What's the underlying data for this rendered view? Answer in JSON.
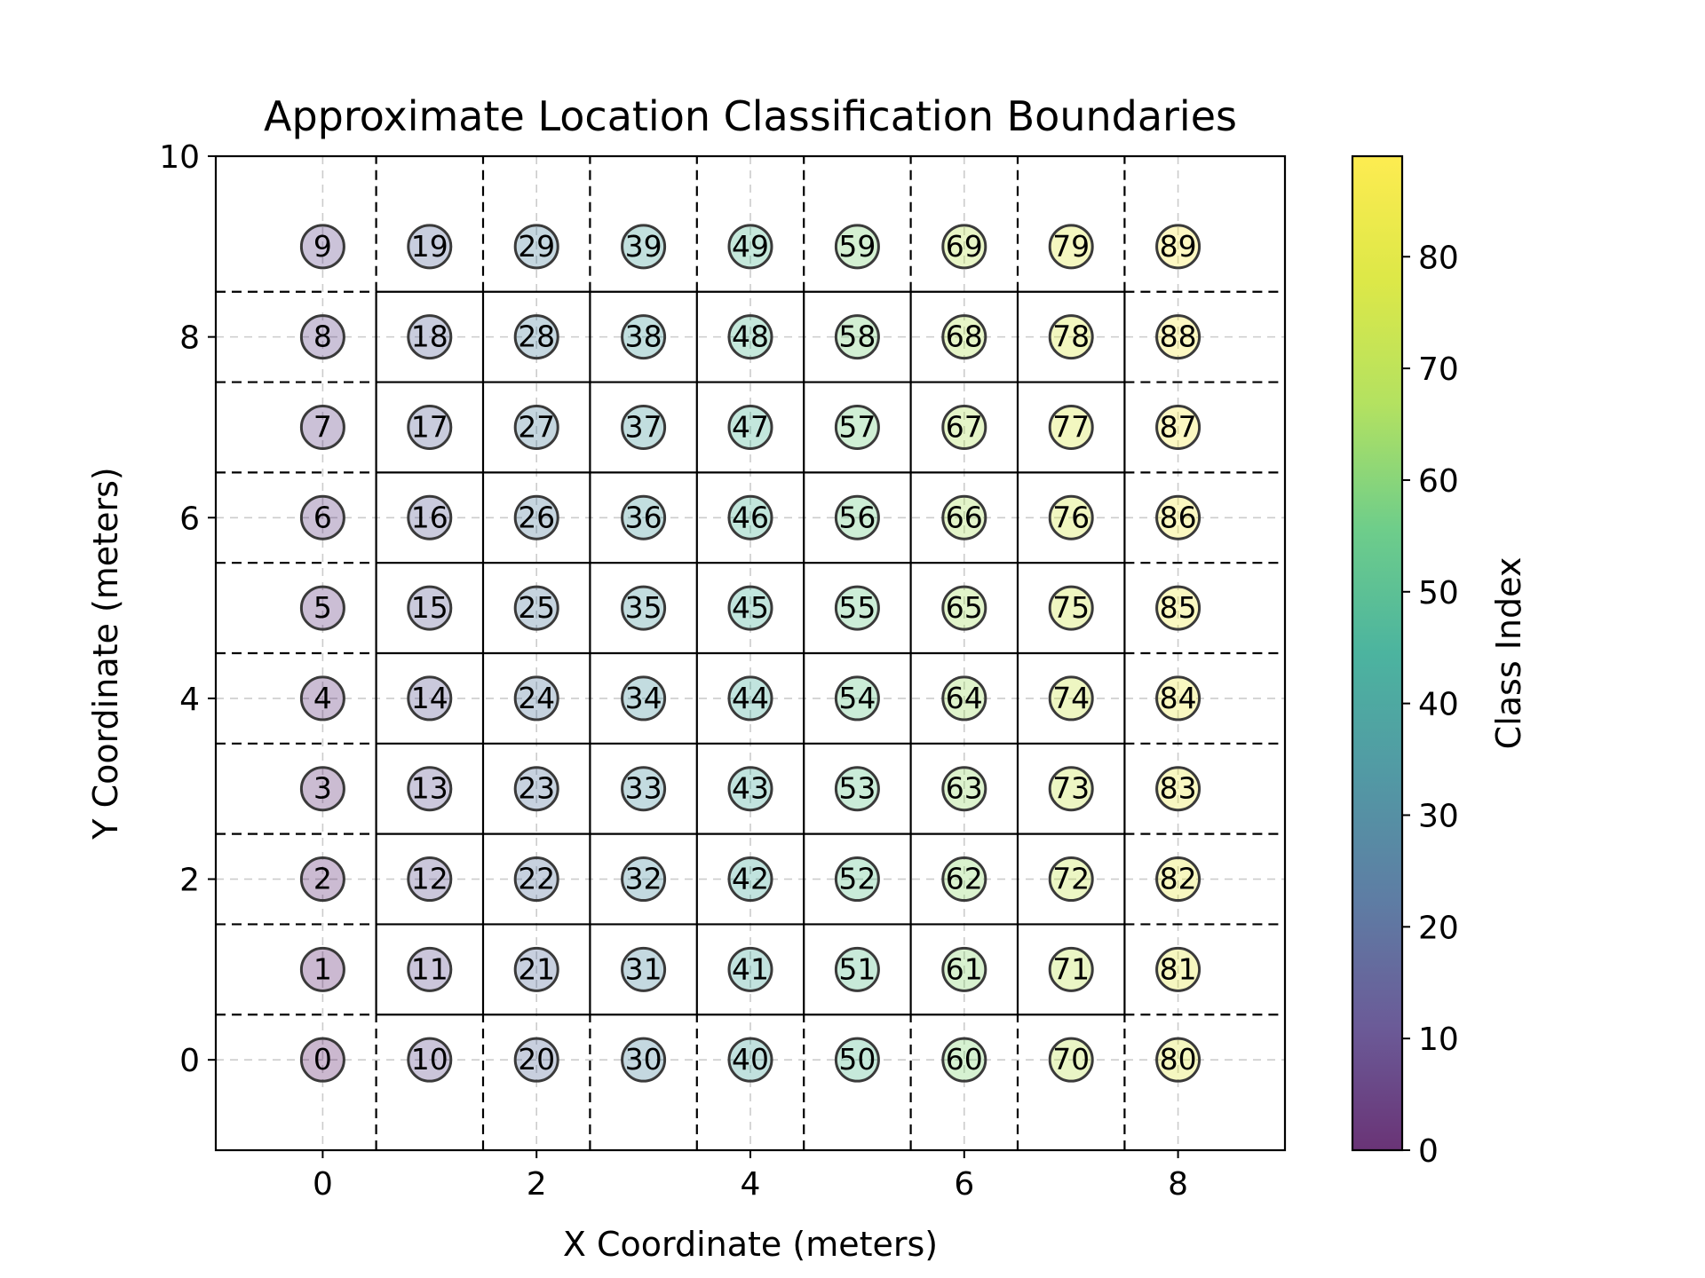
{
  "chart_data": {
    "type": "scatter",
    "title": "Approximate Location Classification Boundaries",
    "xlabel": "X Coordinate (meters)",
    "ylabel": "Y Coordinate (meters)",
    "xlim": [
      -1,
      9
    ],
    "ylim": [
      -1,
      10
    ],
    "xticks": [
      "0",
      "2",
      "4",
      "6",
      "8"
    ],
    "yticks": [
      "0",
      "2",
      "4",
      "6",
      "8",
      "10"
    ],
    "grid": true,
    "points_description": "Class index at each grid location (x, y) = index // 10, index % 10",
    "points": [
      {
        "x": 0,
        "y": 0,
        "class": 0
      },
      {
        "x": 0,
        "y": 1,
        "class": 1
      },
      {
        "x": 0,
        "y": 2,
        "class": 2
      },
      {
        "x": 0,
        "y": 3,
        "class": 3
      },
      {
        "x": 0,
        "y": 4,
        "class": 4
      },
      {
        "x": 0,
        "y": 5,
        "class": 5
      },
      {
        "x": 0,
        "y": 6,
        "class": 6
      },
      {
        "x": 0,
        "y": 7,
        "class": 7
      },
      {
        "x": 0,
        "y": 8,
        "class": 8
      },
      {
        "x": 0,
        "y": 9,
        "class": 9
      },
      {
        "x": 1,
        "y": 0,
        "class": 10
      },
      {
        "x": 1,
        "y": 1,
        "class": 11
      },
      {
        "x": 1,
        "y": 2,
        "class": 12
      },
      {
        "x": 1,
        "y": 3,
        "class": 13
      },
      {
        "x": 1,
        "y": 4,
        "class": 14
      },
      {
        "x": 1,
        "y": 5,
        "class": 15
      },
      {
        "x": 1,
        "y": 6,
        "class": 16
      },
      {
        "x": 1,
        "y": 7,
        "class": 17
      },
      {
        "x": 1,
        "y": 8,
        "class": 18
      },
      {
        "x": 1,
        "y": 9,
        "class": 19
      },
      {
        "x": 2,
        "y": 0,
        "class": 20
      },
      {
        "x": 2,
        "y": 1,
        "class": 21
      },
      {
        "x": 2,
        "y": 2,
        "class": 22
      },
      {
        "x": 2,
        "y": 3,
        "class": 23
      },
      {
        "x": 2,
        "y": 4,
        "class": 24
      },
      {
        "x": 2,
        "y": 5,
        "class": 25
      },
      {
        "x": 2,
        "y": 6,
        "class": 26
      },
      {
        "x": 2,
        "y": 7,
        "class": 27
      },
      {
        "x": 2,
        "y": 8,
        "class": 28
      },
      {
        "x": 2,
        "y": 9,
        "class": 29
      },
      {
        "x": 3,
        "y": 0,
        "class": 30
      },
      {
        "x": 3,
        "y": 1,
        "class": 31
      },
      {
        "x": 3,
        "y": 2,
        "class": 32
      },
      {
        "x": 3,
        "y": 3,
        "class": 33
      },
      {
        "x": 3,
        "y": 4,
        "class": 34
      },
      {
        "x": 3,
        "y": 5,
        "class": 35
      },
      {
        "x": 3,
        "y": 6,
        "class": 36
      },
      {
        "x": 3,
        "y": 7,
        "class": 37
      },
      {
        "x": 3,
        "y": 8,
        "class": 38
      },
      {
        "x": 3,
        "y": 9,
        "class": 39
      },
      {
        "x": 4,
        "y": 0,
        "class": 40
      },
      {
        "x": 4,
        "y": 1,
        "class": 41
      },
      {
        "x": 4,
        "y": 2,
        "class": 42
      },
      {
        "x": 4,
        "y": 3,
        "class": 43
      },
      {
        "x": 4,
        "y": 4,
        "class": 44
      },
      {
        "x": 4,
        "y": 5,
        "class": 45
      },
      {
        "x": 4,
        "y": 6,
        "class": 46
      },
      {
        "x": 4,
        "y": 7,
        "class": 47
      },
      {
        "x": 4,
        "y": 8,
        "class": 48
      },
      {
        "x": 4,
        "y": 9,
        "class": 49
      },
      {
        "x": 5,
        "y": 0,
        "class": 50
      },
      {
        "x": 5,
        "y": 1,
        "class": 51
      },
      {
        "x": 5,
        "y": 2,
        "class": 52
      },
      {
        "x": 5,
        "y": 3,
        "class": 53
      },
      {
        "x": 5,
        "y": 4,
        "class": 54
      },
      {
        "x": 5,
        "y": 5,
        "class": 55
      },
      {
        "x": 5,
        "y": 6,
        "class": 56
      },
      {
        "x": 5,
        "y": 7,
        "class": 57
      },
      {
        "x": 5,
        "y": 8,
        "class": 58
      },
      {
        "x": 5,
        "y": 9,
        "class": 59
      },
      {
        "x": 6,
        "y": 0,
        "class": 60
      },
      {
        "x": 6,
        "y": 1,
        "class": 61
      },
      {
        "x": 6,
        "y": 2,
        "class": 62
      },
      {
        "x": 6,
        "y": 3,
        "class": 63
      },
      {
        "x": 6,
        "y": 4,
        "class": 64
      },
      {
        "x": 6,
        "y": 5,
        "class": 65
      },
      {
        "x": 6,
        "y": 6,
        "class": 66
      },
      {
        "x": 6,
        "y": 7,
        "class": 67
      },
      {
        "x": 6,
        "y": 8,
        "class": 68
      },
      {
        "x": 6,
        "y": 9,
        "class": 69
      },
      {
        "x": 7,
        "y": 0,
        "class": 70
      },
      {
        "x": 7,
        "y": 1,
        "class": 71
      },
      {
        "x": 7,
        "y": 2,
        "class": 72
      },
      {
        "x": 7,
        "y": 3,
        "class": 73
      },
      {
        "x": 7,
        "y": 4,
        "class": 74
      },
      {
        "x": 7,
        "y": 5,
        "class": 75
      },
      {
        "x": 7,
        "y": 6,
        "class": 76
      },
      {
        "x": 7,
        "y": 7,
        "class": 77
      },
      {
        "x": 7,
        "y": 8,
        "class": 78
      },
      {
        "x": 7,
        "y": 9,
        "class": 79
      },
      {
        "x": 8,
        "y": 0,
        "class": 80
      },
      {
        "x": 8,
        "y": 1,
        "class": 81
      },
      {
        "x": 8,
        "y": 2,
        "class": 82
      },
      {
        "x": 8,
        "y": 3,
        "class": 83
      },
      {
        "x": 8,
        "y": 4,
        "class": 84
      },
      {
        "x": 8,
        "y": 5,
        "class": 85
      },
      {
        "x": 8,
        "y": 6,
        "class": 86
      },
      {
        "x": 8,
        "y": 7,
        "class": 87
      },
      {
        "x": 8,
        "y": 8,
        "class": 88
      },
      {
        "x": 8,
        "y": 9,
        "class": 89
      }
    ],
    "boundaries": {
      "vertical_x": [
        0.5,
        1.5,
        2.5,
        3.5,
        4.5,
        5.5,
        6.5,
        7.5
      ],
      "horizontal_y": [
        0.5,
        1.5,
        2.5,
        3.5,
        4.5,
        5.5,
        6.5,
        7.5,
        8.5
      ],
      "style": "dashed"
    },
    "colorbar": {
      "label": "Class Index",
      "colormap": "viridis",
      "range": [
        0,
        89
      ],
      "ticks": [
        "0",
        "10",
        "20",
        "30",
        "40",
        "50",
        "60",
        "70",
        "80"
      ]
    }
  },
  "colors": {
    "grid": "#cccccc",
    "marker_edge": "#3a3a3a",
    "boundary": "#000000"
  }
}
